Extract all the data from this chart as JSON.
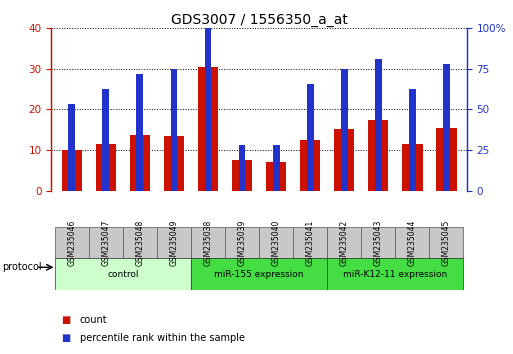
{
  "title": "GDS3007 / 1556350_a_at",
  "samples": [
    "GSM235046",
    "GSM235047",
    "GSM235048",
    "GSM235049",
    "GSM235038",
    "GSM235039",
    "GSM235040",
    "GSM235041",
    "GSM235042",
    "GSM235043",
    "GSM235044",
    "GSM235045"
  ],
  "count_values": [
    10.0,
    11.5,
    13.8,
    13.5,
    30.5,
    7.5,
    7.0,
    12.5,
    15.2,
    17.5,
    11.5,
    15.5
  ],
  "percentile_values": [
    21.25,
    25.0,
    28.75,
    30.0,
    46.25,
    11.25,
    11.25,
    26.25,
    30.0,
    32.5,
    25.0,
    31.25
  ],
  "ylim_left": [
    0,
    40
  ],
  "ylim_right": [
    0,
    100
  ],
  "yticks_left": [
    0,
    10,
    20,
    30,
    40
  ],
  "yticks_right": [
    0,
    25,
    50,
    75,
    100
  ],
  "ytick_labels_right": [
    "0",
    "25",
    "50",
    "75",
    "100%"
  ],
  "bar_color_red": "#cc1100",
  "bar_color_blue": "#2233cc",
  "bar_width": 0.6,
  "blue_bar_width": 0.2,
  "groups": [
    {
      "label": "control",
      "start": 0,
      "end": 4,
      "color": "#ccffcc"
    },
    {
      "label": "miR-155 expression",
      "start": 4,
      "end": 8,
      "color": "#44dd44"
    },
    {
      "label": "miR-K12-11 expression",
      "start": 8,
      "end": 12,
      "color": "#44dd44"
    }
  ],
  "protocol_label": "protocol",
  "legend_items": [
    {
      "label": "count",
      "color": "#cc1100"
    },
    {
      "label": "percentile rank within the sample",
      "color": "#2233cc"
    }
  ],
  "grid_color": "black",
  "axis_left_color": "#cc1100",
  "axis_right_color": "#2233cc",
  "background_color": "#ffffff",
  "tick_label_area_color": "#c8c8c8",
  "title_fontsize": 10,
  "tick_fontsize": 7.5
}
